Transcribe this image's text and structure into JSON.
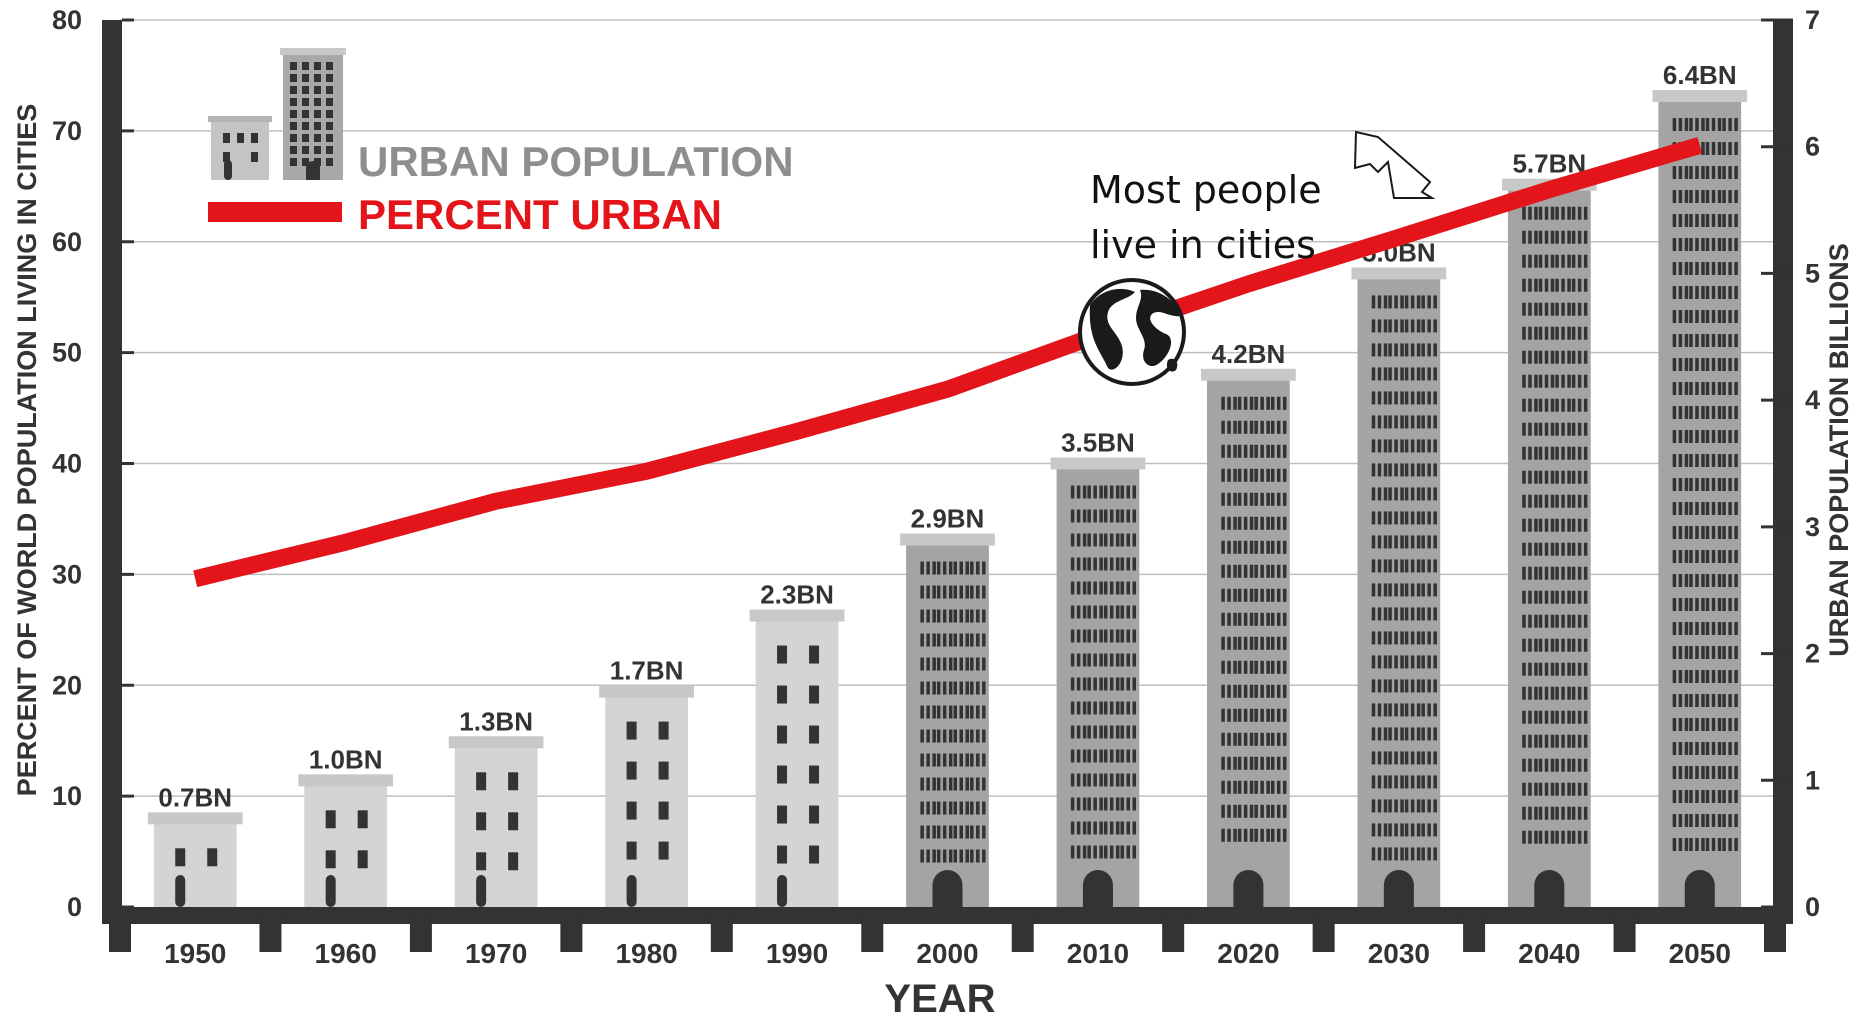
{
  "chart_data": {
    "type": "bar",
    "categories": [
      "1950",
      "1960",
      "1970",
      "1980",
      "1990",
      "2000",
      "2010",
      "2020",
      "2030",
      "2040",
      "2050"
    ],
    "xlabel": "YEAR",
    "ylabel_left": "PERCENT OF WORLD POPULATION LIVING IN CITIES",
    "ylabel_right": "URBAN POPULATION BILLIONS",
    "ylim_left": [
      0,
      80
    ],
    "ylim_right": [
      0,
      7
    ],
    "yticks_left": [
      "0",
      "10",
      "20",
      "30",
      "40",
      "50",
      "60",
      "70",
      "80"
    ],
    "yticks_right": [
      "0",
      "1",
      "2",
      "3",
      "4",
      "5",
      "6",
      "7"
    ],
    "grid": true,
    "series": [
      {
        "name": "URBAN POPULATION",
        "type": "bar",
        "axis": "right",
        "values": [
          0.7,
          1.0,
          1.3,
          1.7,
          2.3,
          2.9,
          3.5,
          4.2,
          5.0,
          5.7,
          6.4
        ],
        "labels": [
          "0.7BN",
          "1.0BN",
          "1.3BN",
          "1.7BN",
          "2.3BN",
          "2.9BN",
          "3.5BN",
          "4.2BN",
          "5.0BN",
          "5.7BN",
          "6.4BN"
        ],
        "color": "#b0b0b0"
      },
      {
        "name": "PERCENT URBAN",
        "type": "line",
        "axis": "left",
        "values": [
          29.6,
          32.9,
          36.6,
          39.3,
          42.9,
          46.7,
          51.6,
          56.2,
          60.4,
          64.7,
          68.7
        ],
        "color": "#e3151a"
      }
    ],
    "legend": {
      "placement": "top-left",
      "items": [
        "URBAN POPULATION",
        "PERCENT URBAN"
      ]
    },
    "annotation": {
      "lines": [
        "Most people",
        "live in cities"
      ],
      "icons": [
        "globe-icon",
        "arrow-icon"
      ]
    }
  },
  "colors": {
    "frame": "#333333",
    "grid": "#bfbfbf",
    "accent": "#e3151a",
    "building_light": "#d4d4d4",
    "building_dark": "#a4a4a4",
    "window": "#333333",
    "legend_gray": "#8e8e8e"
  }
}
